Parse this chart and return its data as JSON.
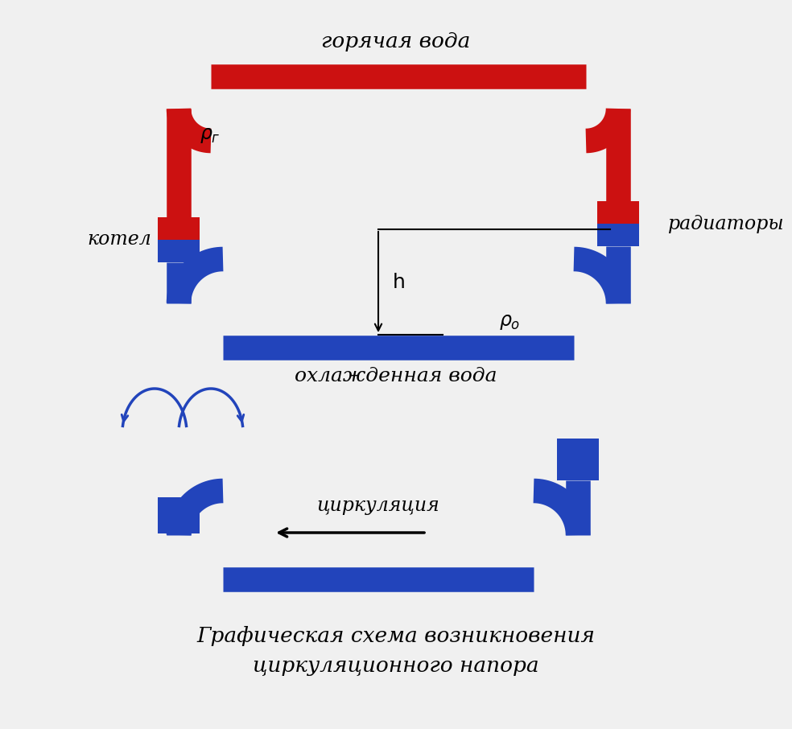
{
  "bg_color": "#f0f0f0",
  "red_color": "#cc1111",
  "blue_color": "#2244bb",
  "title_top": "горячая вода",
  "title_bottom_water": "охлажденная вода",
  "label_kotel": "котел",
  "label_radiator": "радиаторы",
  "label_tsirk": "циркуляция",
  "caption_line1": "Графическая схема возникновения",
  "caption_line2": "циркуляционного напора"
}
